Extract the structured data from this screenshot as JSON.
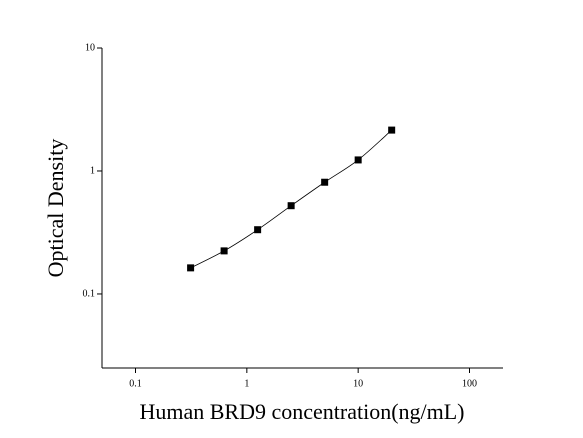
{
  "chart_data": {
    "type": "scatter",
    "x_label": "Human BRD9 concentration(ng/mL)",
    "y_label": "Optical Density",
    "x": [
      0.3125,
      0.625,
      1.25,
      2.5,
      5,
      10,
      20
    ],
    "series": [
      {
        "values": [
          0.163,
          0.224,
          0.333,
          0.522,
          0.81,
          1.23,
          2.15
        ],
        "color": "#000000"
      }
    ],
    "xlim": [
      0.05,
      200
    ],
    "ylim": [
      0.025,
      10
    ],
    "xticks": [
      0.1,
      1,
      10,
      100
    ],
    "yticks": [
      0.1,
      1,
      10
    ],
    "xscale": "log",
    "yscale": "log",
    "fit_line": true
  }
}
